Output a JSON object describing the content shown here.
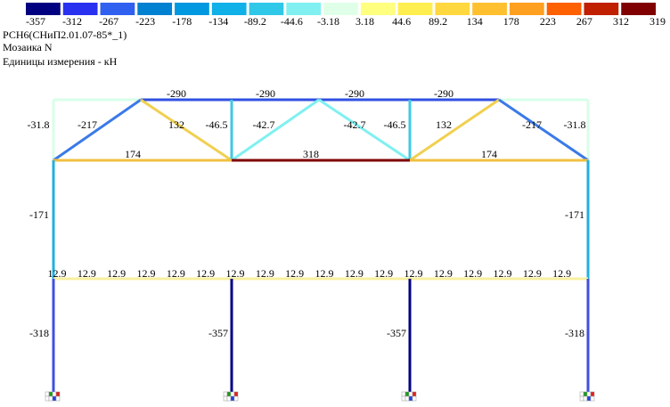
{
  "legend": {
    "colors": [
      "#000080",
      "#2a30f0",
      "#3060f0",
      "#0080d0",
      "#0098e0",
      "#10b0e8",
      "#30c8e8",
      "#80f0f0",
      "#e0ffe8",
      "#ffff80",
      "#ffee50",
      "#ffd840",
      "#ffc030",
      "#ffa020",
      "#ff6000",
      "#c02000",
      "#800000"
    ],
    "labels": [
      "-357",
      "-312",
      "-267",
      "-223",
      "-178",
      "-134",
      "-89.2",
      "-44.6",
      "-3.18",
      "3.18",
      "44.6",
      "89.2",
      "134",
      "178",
      "223",
      "267",
      "312",
      "319"
    ]
  },
  "header": {
    "lines": [
      "РСН6(СНиП2.01.07-85*_1)",
      "Мозаика N",
      "Единицы измерения - кН"
    ]
  },
  "members": [
    {
      "label": "-290"
    },
    {
      "label": "-290"
    },
    {
      "label": "-290"
    },
    {
      "label": "-290"
    },
    {
      "label": "-31.8"
    },
    {
      "label": "-31.8"
    },
    {
      "label": "-217"
    },
    {
      "label": "132"
    },
    {
      "label": "-46.5"
    },
    {
      "label": "-42.7"
    },
    {
      "label": "-42.7"
    },
    {
      "label": "-46.5"
    },
    {
      "label": "132"
    },
    {
      "label": "-217"
    },
    {
      "label": "174"
    },
    {
      "label": "318"
    },
    {
      "label": "174"
    },
    {
      "label": "-171"
    },
    {
      "label": "-171"
    },
    {
      "label": "12.9"
    },
    {
      "label": "12.9"
    },
    {
      "label": "12.9"
    },
    {
      "label": "12.9"
    },
    {
      "label": "12.9"
    },
    {
      "label": "12.9"
    },
    {
      "label": "12.9"
    },
    {
      "label": "12.9"
    },
    {
      "label": "12.9"
    },
    {
      "label": "12.9"
    },
    {
      "label": "12.9"
    },
    {
      "label": "12.9"
    },
    {
      "label": "12.9"
    },
    {
      "label": "12.9"
    },
    {
      "label": "12.9"
    },
    {
      "label": "12.9"
    },
    {
      "label": "12.9"
    },
    {
      "label": "12.9"
    },
    {
      "label": "-318"
    },
    {
      "label": "-357"
    },
    {
      "label": "-357"
    },
    {
      "label": "-318"
    }
  ]
}
